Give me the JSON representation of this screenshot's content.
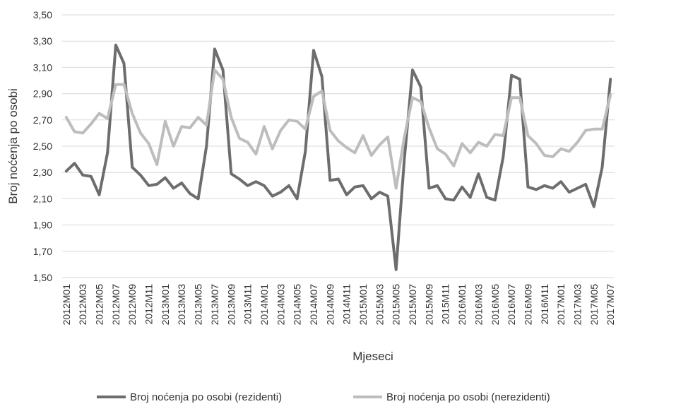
{
  "chart_data": {
    "type": "line",
    "title": "",
    "xlabel": "Mjeseci",
    "ylabel": "Broj noćenja po osobi",
    "ylim": [
      1.5,
      3.5
    ],
    "y_ticks": [
      "1,50",
      "1,70",
      "1,90",
      "2,10",
      "2,30",
      "2,50",
      "2,70",
      "2,90",
      "3,10",
      "3,30",
      "3,50"
    ],
    "grid": "horizontal",
    "legend_position": "bottom",
    "x": [
      "2012M01",
      "2012M02",
      "2012M03",
      "2012M04",
      "2012M05",
      "2012M06",
      "2012M07",
      "2012M08",
      "2012M09",
      "2012M10",
      "2012M11",
      "2012M12",
      "2013M01",
      "2013M02",
      "2013M03",
      "2013M04",
      "2013M05",
      "2013M06",
      "2013M07",
      "2013M08",
      "2013M09",
      "2013M10",
      "2013M11",
      "2013M12",
      "2014M01",
      "2014M02",
      "2014M03",
      "2014M04",
      "2014M05",
      "2014M06",
      "2014M07",
      "2014M08",
      "2014M09",
      "2014M10",
      "2014M11",
      "2014M12",
      "2015M01",
      "2015M02",
      "2015M03",
      "2015M04",
      "2015M05",
      "2015M06",
      "2015M07",
      "2015M08",
      "2015M09",
      "2015M10",
      "2015M11",
      "2015M12",
      "2016M01",
      "2016M02",
      "2016M03",
      "2016M04",
      "2016M05",
      "2016M06",
      "2016M07",
      "2016M08",
      "2016M09",
      "2016M10",
      "2016M11",
      "2016M12",
      "2017M01",
      "2017M02",
      "2017M03",
      "2017M04",
      "2017M05",
      "2017M06",
      "2017M07"
    ],
    "x_tick_labels": [
      "2012M01",
      "2012M03",
      "2012M05",
      "2012M07",
      "2012M09",
      "2012M11",
      "2013M01",
      "2013M03",
      "2013M05",
      "2013M07",
      "2013M09",
      "2013M11",
      "2014M01",
      "2014M03",
      "2014M05",
      "2014M07",
      "2014M09",
      "2014M11",
      "2015M01",
      "2015M03",
      "2015M05",
      "2015M07",
      "2015M09",
      "2015M11",
      "2016M01",
      "2016M03",
      "2016M05",
      "2016M07",
      "2016M09",
      "2016M11",
      "2017M01",
      "2017M03",
      "2017M05",
      "2017M07"
    ],
    "series": [
      {
        "name": "Broj noćenja po osobi (rezidenti)",
        "color": "#6d6d6d",
        "values": [
          2.31,
          2.37,
          2.28,
          2.27,
          2.13,
          2.45,
          3.27,
          3.13,
          2.34,
          2.28,
          2.2,
          2.21,
          2.26,
          2.18,
          2.22,
          2.14,
          2.1,
          2.5,
          3.24,
          3.08,
          2.29,
          2.25,
          2.2,
          2.23,
          2.2,
          2.12,
          2.15,
          2.2,
          2.1,
          2.46,
          3.23,
          3.03,
          2.24,
          2.25,
          2.13,
          2.19,
          2.2,
          2.1,
          2.15,
          2.12,
          1.56,
          2.4,
          3.08,
          2.95,
          2.18,
          2.2,
          2.1,
          2.09,
          2.19,
          2.11,
          2.29,
          2.11,
          2.09,
          2.42,
          3.04,
          3.01,
          2.19,
          2.17,
          2.2,
          2.18,
          2.23,
          2.15,
          2.18,
          2.21,
          2.04,
          2.34,
          3.01
        ]
      },
      {
        "name": "Broj noćenja po osobi (nerezidenti)",
        "color": "#bdbdbd",
        "values": [
          2.72,
          2.61,
          2.6,
          2.67,
          2.75,
          2.71,
          2.97,
          2.97,
          2.75,
          2.6,
          2.52,
          2.36,
          2.69,
          2.5,
          2.65,
          2.64,
          2.72,
          2.66,
          3.08,
          3.01,
          2.72,
          2.56,
          2.53,
          2.44,
          2.65,
          2.48,
          2.62,
          2.7,
          2.69,
          2.63,
          2.88,
          2.92,
          2.62,
          2.54,
          2.49,
          2.45,
          2.58,
          2.43,
          2.51,
          2.57,
          2.18,
          2.57,
          2.87,
          2.84,
          2.64,
          2.48,
          2.44,
          2.35,
          2.52,
          2.45,
          2.53,
          2.5,
          2.59,
          2.58,
          2.87,
          2.87,
          2.58,
          2.52,
          2.43,
          2.42,
          2.48,
          2.46,
          2.53,
          2.62,
          2.63,
          2.63,
          2.89
        ]
      }
    ]
  }
}
